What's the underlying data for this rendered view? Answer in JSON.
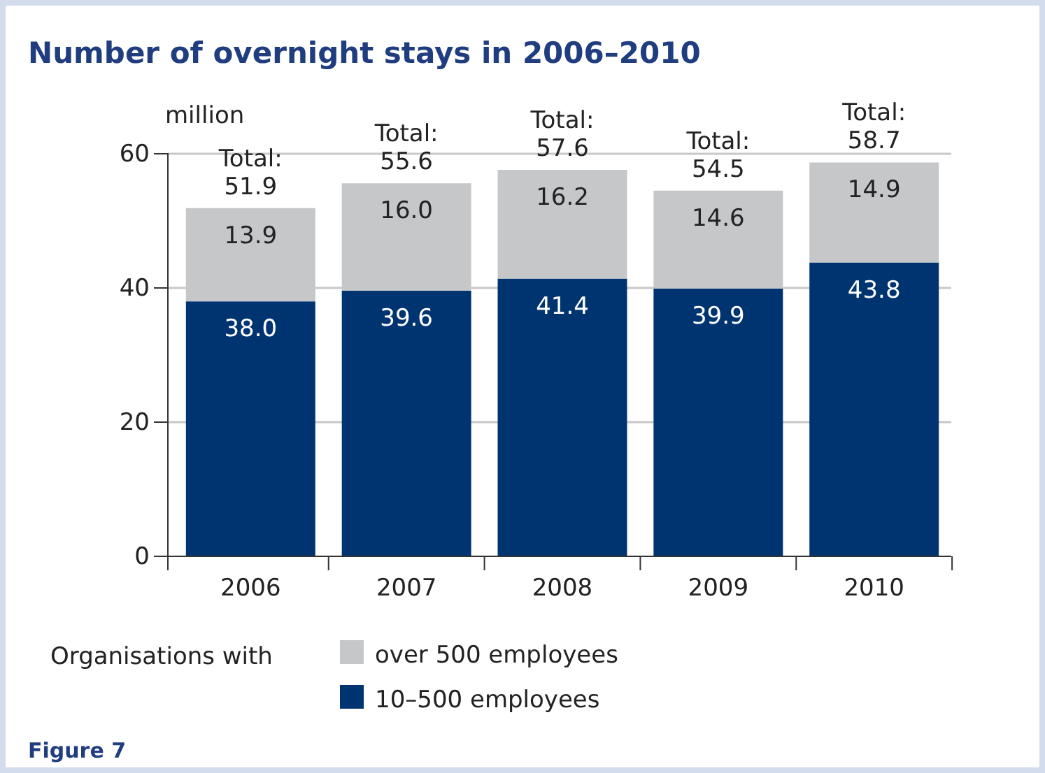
{
  "chart_data": {
    "type": "bar",
    "title": "Number of overnight stays in 2006–2010",
    "ylabel": "million",
    "categories": [
      "2006",
      "2007",
      "2008",
      "2009",
      "2010"
    ],
    "stacked": true,
    "series": [
      {
        "name": "10–500 employees",
        "color": "#003471",
        "values": [
          38.0,
          39.6,
          41.4,
          39.9,
          43.8
        ],
        "value_labels": [
          "38.0",
          "39.6",
          "41.4",
          "39.9",
          "43.8"
        ]
      },
      {
        "name": "over 500 employees",
        "color": "#c6c7c9",
        "values": [
          13.9,
          16.0,
          16.2,
          14.6,
          14.9
        ],
        "value_labels": [
          "13.9",
          "16.0",
          "16.2",
          "14.6",
          "14.9"
        ]
      }
    ],
    "totals": [
      "Total: 51.9",
      "Total: 55.6",
      "Total: 57.6",
      "Total: 54.5",
      "Total: 58.7"
    ],
    "ylim": [
      0,
      60
    ],
    "yticks": [
      0,
      20,
      40,
      60
    ],
    "grid": "y",
    "legend": "bottom",
    "legend_title": "Organisations with",
    "annotations": [
      "Figure 7"
    ]
  }
}
